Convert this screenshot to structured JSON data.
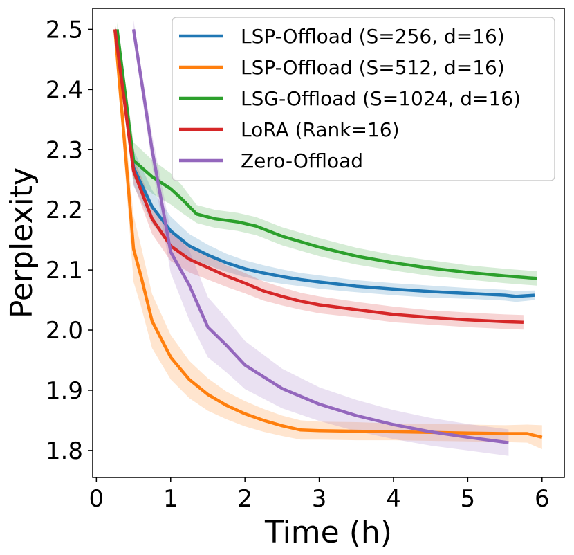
{
  "chart_data": {
    "type": "line",
    "title": "",
    "xlabel": "Time (h)",
    "ylabel": "Perplexity",
    "xlim": [
      -0.05,
      6.3
    ],
    "ylim": [
      1.755,
      2.535
    ],
    "xticks": [
      0,
      1,
      2,
      3,
      4,
      5,
      6
    ],
    "xtick_labels": [
      "0",
      "1",
      "2",
      "3",
      "4",
      "5",
      "6"
    ],
    "yticks": [
      1.8,
      1.9,
      2.0,
      2.1,
      2.2,
      2.3,
      2.4,
      2.5
    ],
    "ytick_labels": [
      "1.8",
      "1.9",
      "2.0",
      "2.1",
      "2.2",
      "2.3",
      "2.4",
      "2.5"
    ],
    "grid": false,
    "legend_position": "top-right",
    "series": [
      {
        "name": "LSP-Offload (S=256, d=16)",
        "color": "#1f77b4",
        "x": [
          0.25,
          0.5,
          0.75,
          1.0,
          1.25,
          1.5,
          1.75,
          2.0,
          2.25,
          2.5,
          2.75,
          3.0,
          3.5,
          4.0,
          4.5,
          5.0,
          5.5,
          5.65,
          5.9
        ],
        "y": [
          2.5,
          2.27,
          2.205,
          2.165,
          2.14,
          2.125,
          2.112,
          2.102,
          2.095,
          2.089,
          2.084,
          2.08,
          2.073,
          2.068,
          2.064,
          2.061,
          2.058,
          2.056,
          2.058
        ],
        "band": [
          0.012,
          0.03,
          0.028,
          0.024,
          0.02,
          0.017,
          0.015,
          0.014,
          0.013,
          0.012,
          0.011,
          0.011,
          0.01,
          0.01,
          0.01,
          0.009,
          0.009,
          0.009,
          0.008
        ]
      },
      {
        "name": "LSP-Offload (S=512, d=16)",
        "color": "#ff7f0e",
        "x": [
          0.25,
          0.5,
          0.6,
          0.75,
          1.0,
          1.25,
          1.5,
          1.75,
          2.0,
          2.25,
          2.5,
          2.75,
          3.0,
          3.5,
          4.0,
          4.5,
          5.0,
          5.5,
          5.8,
          6.0
        ],
        "y": [
          2.5,
          2.135,
          2.09,
          2.015,
          1.955,
          1.918,
          1.893,
          1.875,
          1.861,
          1.85,
          1.841,
          1.834,
          1.833,
          1.832,
          1.831,
          1.83,
          1.829,
          1.828,
          1.828,
          1.822
        ],
        "band": [
          0.015,
          0.055,
          0.05,
          0.045,
          0.037,
          0.031,
          0.027,
          0.023,
          0.021,
          0.019,
          0.017,
          0.016,
          0.015,
          0.015,
          0.014,
          0.014,
          0.014,
          0.014,
          0.015,
          0.02
        ]
      },
      {
        "name": "LSG-Offload (S=1024, d=16)",
        "color": "#2ca02c",
        "x": [
          0.28,
          0.5,
          0.75,
          1.0,
          1.15,
          1.35,
          1.6,
          1.9,
          2.15,
          2.5,
          3.0,
          3.5,
          4.0,
          4.5,
          5.0,
          5.5,
          5.93
        ],
        "y": [
          2.5,
          2.282,
          2.255,
          2.235,
          2.218,
          2.193,
          2.185,
          2.18,
          2.173,
          2.156,
          2.138,
          2.123,
          2.112,
          2.103,
          2.096,
          2.09,
          2.086
        ],
        "band": [
          0.012,
          0.03,
          0.028,
          0.026,
          0.023,
          0.015,
          0.015,
          0.015,
          0.015,
          0.015,
          0.015,
          0.014,
          0.013,
          0.013,
          0.012,
          0.012,
          0.012
        ]
      },
      {
        "name": "LoRA (Rank=16)",
        "color": "#d62728",
        "x": [
          0.25,
          0.5,
          0.75,
          1.0,
          1.25,
          1.5,
          1.75,
          2.0,
          2.25,
          2.5,
          2.75,
          3.0,
          3.5,
          4.0,
          4.5,
          5.0,
          5.5,
          5.75
        ],
        "y": [
          2.5,
          2.265,
          2.185,
          2.14,
          2.118,
          2.104,
          2.09,
          2.078,
          2.065,
          2.056,
          2.048,
          2.042,
          2.034,
          2.026,
          2.021,
          2.017,
          2.014,
          2.013
        ],
        "band": [
          0.012,
          0.022,
          0.025,
          0.025,
          0.022,
          0.02,
          0.018,
          0.017,
          0.016,
          0.015,
          0.014,
          0.014,
          0.013,
          0.013,
          0.012,
          0.012,
          0.012,
          0.012
        ]
      },
      {
        "name": "Zero-Offload",
        "color": "#9467bd",
        "x": [
          0.5,
          0.75,
          1.0,
          1.25,
          1.5,
          1.75,
          2.0,
          2.5,
          3.0,
          3.5,
          4.0,
          4.5,
          5.0,
          5.55
        ],
        "y": [
          2.5,
          2.3,
          2.13,
          2.075,
          2.005,
          1.975,
          1.942,
          1.903,
          1.877,
          1.858,
          1.843,
          1.831,
          1.822,
          1.813
        ],
        "band": [
          0.015,
          0.025,
          0.035,
          0.058,
          0.05,
          0.045,
          0.04,
          0.033,
          0.028,
          0.026,
          0.024,
          0.023,
          0.022,
          0.022
        ]
      }
    ]
  }
}
